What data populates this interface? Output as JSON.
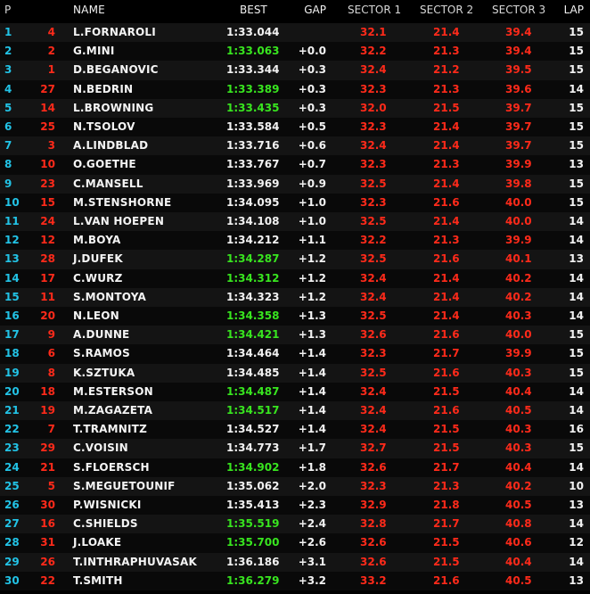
{
  "headers": {
    "p": "P",
    "name": "NAME",
    "best": "BEST",
    "gap": "GAP",
    "s1": "SECTOR 1",
    "s2": "SECTOR 2",
    "s3": "SECTOR 3",
    "lap": "LAP"
  },
  "rows": [
    {
      "pos": "1",
      "num": "4",
      "name": "L.FORNAROLI",
      "best": "1:33.044",
      "gap": "",
      "s1": "32.1",
      "s2": "21.4",
      "s3": "39.4",
      "lap": "15",
      "green": false
    },
    {
      "pos": "2",
      "num": "2",
      "name": "G.MINI",
      "best": "1:33.063",
      "gap": "+0.0",
      "s1": "32.2",
      "s2": "21.3",
      "s3": "39.4",
      "lap": "15",
      "green": true
    },
    {
      "pos": "3",
      "num": "1",
      "name": "D.BEGANOVIC",
      "best": "1:33.344",
      "gap": "+0.3",
      "s1": "32.4",
      "s2": "21.2",
      "s3": "39.5",
      "lap": "15",
      "green": false
    },
    {
      "pos": "4",
      "num": "27",
      "name": "N.BEDRIN",
      "best": "1:33.389",
      "gap": "+0.3",
      "s1": "32.3",
      "s2": "21.3",
      "s3": "39.6",
      "lap": "14",
      "green": true
    },
    {
      "pos": "5",
      "num": "14",
      "name": "L.BROWNING",
      "best": "1:33.435",
      "gap": "+0.3",
      "s1": "32.0",
      "s2": "21.5",
      "s3": "39.7",
      "lap": "15",
      "green": true
    },
    {
      "pos": "6",
      "num": "25",
      "name": "N.TSOLOV",
      "best": "1:33.584",
      "gap": "+0.5",
      "s1": "32.3",
      "s2": "21.4",
      "s3": "39.7",
      "lap": "15",
      "green": false
    },
    {
      "pos": "7",
      "num": "3",
      "name": "A.LINDBLAD",
      "best": "1:33.716",
      "gap": "+0.6",
      "s1": "32.4",
      "s2": "21.4",
      "s3": "39.7",
      "lap": "15",
      "green": false
    },
    {
      "pos": "8",
      "num": "10",
      "name": "O.GOETHE",
      "best": "1:33.767",
      "gap": "+0.7",
      "s1": "32.3",
      "s2": "21.3",
      "s3": "39.9",
      "lap": "13",
      "green": false
    },
    {
      "pos": "9",
      "num": "23",
      "name": "C.MANSELL",
      "best": "1:33.969",
      "gap": "+0.9",
      "s1": "32.5",
      "s2": "21.4",
      "s3": "39.8",
      "lap": "15",
      "green": false
    },
    {
      "pos": "10",
      "num": "15",
      "name": "M.STENSHORNE",
      "best": "1:34.095",
      "gap": "+1.0",
      "s1": "32.3",
      "s2": "21.6",
      "s3": "40.0",
      "lap": "15",
      "green": false
    },
    {
      "pos": "11",
      "num": "24",
      "name": "L.VAN HOEPEN",
      "best": "1:34.108",
      "gap": "+1.0",
      "s1": "32.5",
      "s2": "21.4",
      "s3": "40.0",
      "lap": "14",
      "green": false
    },
    {
      "pos": "12",
      "num": "12",
      "name": "M.BOYA",
      "best": "1:34.212",
      "gap": "+1.1",
      "s1": "32.2",
      "s2": "21.3",
      "s3": "39.9",
      "lap": "14",
      "green": false
    },
    {
      "pos": "13",
      "num": "28",
      "name": "J.DUFEK",
      "best": "1:34.287",
      "gap": "+1.2",
      "s1": "32.5",
      "s2": "21.6",
      "s3": "40.1",
      "lap": "13",
      "green": true
    },
    {
      "pos": "14",
      "num": "17",
      "name": "C.WURZ",
      "best": "1:34.312",
      "gap": "+1.2",
      "s1": "32.4",
      "s2": "21.4",
      "s3": "40.2",
      "lap": "14",
      "green": true
    },
    {
      "pos": "15",
      "num": "11",
      "name": "S.MONTOYA",
      "best": "1:34.323",
      "gap": "+1.2",
      "s1": "32.4",
      "s2": "21.4",
      "s3": "40.2",
      "lap": "14",
      "green": false
    },
    {
      "pos": "16",
      "num": "20",
      "name": "N.LEON",
      "best": "1:34.358",
      "gap": "+1.3",
      "s1": "32.5",
      "s2": "21.4",
      "s3": "40.3",
      "lap": "14",
      "green": true
    },
    {
      "pos": "17",
      "num": "9",
      "name": "A.DUNNE",
      "best": "1:34.421",
      "gap": "+1.3",
      "s1": "32.6",
      "s2": "21.6",
      "s3": "40.0",
      "lap": "15",
      "green": true
    },
    {
      "pos": "18",
      "num": "6",
      "name": "S.RAMOS",
      "best": "1:34.464",
      "gap": "+1.4",
      "s1": "32.3",
      "s2": "21.7",
      "s3": "39.9",
      "lap": "15",
      "green": false
    },
    {
      "pos": "19",
      "num": "8",
      "name": "K.SZTUKA",
      "best": "1:34.485",
      "gap": "+1.4",
      "s1": "32.5",
      "s2": "21.6",
      "s3": "40.3",
      "lap": "15",
      "green": false
    },
    {
      "pos": "20",
      "num": "18",
      "name": "M.ESTERSON",
      "best": "1:34.487",
      "gap": "+1.4",
      "s1": "32.4",
      "s2": "21.5",
      "s3": "40.4",
      "lap": "14",
      "green": true
    },
    {
      "pos": "21",
      "num": "19",
      "name": "M.ZAGAZETA",
      "best": "1:34.517",
      "gap": "+1.4",
      "s1": "32.4",
      "s2": "21.6",
      "s3": "40.5",
      "lap": "14",
      "green": true
    },
    {
      "pos": "22",
      "num": "7",
      "name": "T.TRAMNITZ",
      "best": "1:34.527",
      "gap": "+1.4",
      "s1": "32.4",
      "s2": "21.5",
      "s3": "40.3",
      "lap": "16",
      "green": false
    },
    {
      "pos": "23",
      "num": "29",
      "name": "C.VOISIN",
      "best": "1:34.773",
      "gap": "+1.7",
      "s1": "32.7",
      "s2": "21.5",
      "s3": "40.3",
      "lap": "15",
      "green": false
    },
    {
      "pos": "24",
      "num": "21",
      "name": "S.FLOERSCH",
      "best": "1:34.902",
      "gap": "+1.8",
      "s1": "32.6",
      "s2": "21.7",
      "s3": "40.4",
      "lap": "14",
      "green": true
    },
    {
      "pos": "25",
      "num": "5",
      "name": "S.MEGUETOUNIF",
      "best": "1:35.062",
      "gap": "+2.0",
      "s1": "32.3",
      "s2": "21.3",
      "s3": "40.2",
      "lap": "10",
      "green": false
    },
    {
      "pos": "26",
      "num": "30",
      "name": "P.WISNICKI",
      "best": "1:35.413",
      "gap": "+2.3",
      "s1": "32.9",
      "s2": "21.8",
      "s3": "40.5",
      "lap": "13",
      "green": false
    },
    {
      "pos": "27",
      "num": "16",
      "name": "C.SHIELDS",
      "best": "1:35.519",
      "gap": "+2.4",
      "s1": "32.8",
      "s2": "21.7",
      "s3": "40.8",
      "lap": "14",
      "green": true
    },
    {
      "pos": "28",
      "num": "31",
      "name": "J.LOAKE",
      "best": "1:35.700",
      "gap": "+2.6",
      "s1": "32.6",
      "s2": "21.5",
      "s3": "40.6",
      "lap": "12",
      "green": true
    },
    {
      "pos": "29",
      "num": "26",
      "name": "T.INTHRAPHUVASAK",
      "best": "1:36.186",
      "gap": "+3.1",
      "s1": "32.6",
      "s2": "21.5",
      "s3": "40.4",
      "lap": "14",
      "green": false
    },
    {
      "pos": "30",
      "num": "22",
      "name": "T.SMITH",
      "best": "1:36.279",
      "gap": "+3.2",
      "s1": "33.2",
      "s2": "21.6",
      "s3": "40.5",
      "lap": "13",
      "green": true
    }
  ]
}
